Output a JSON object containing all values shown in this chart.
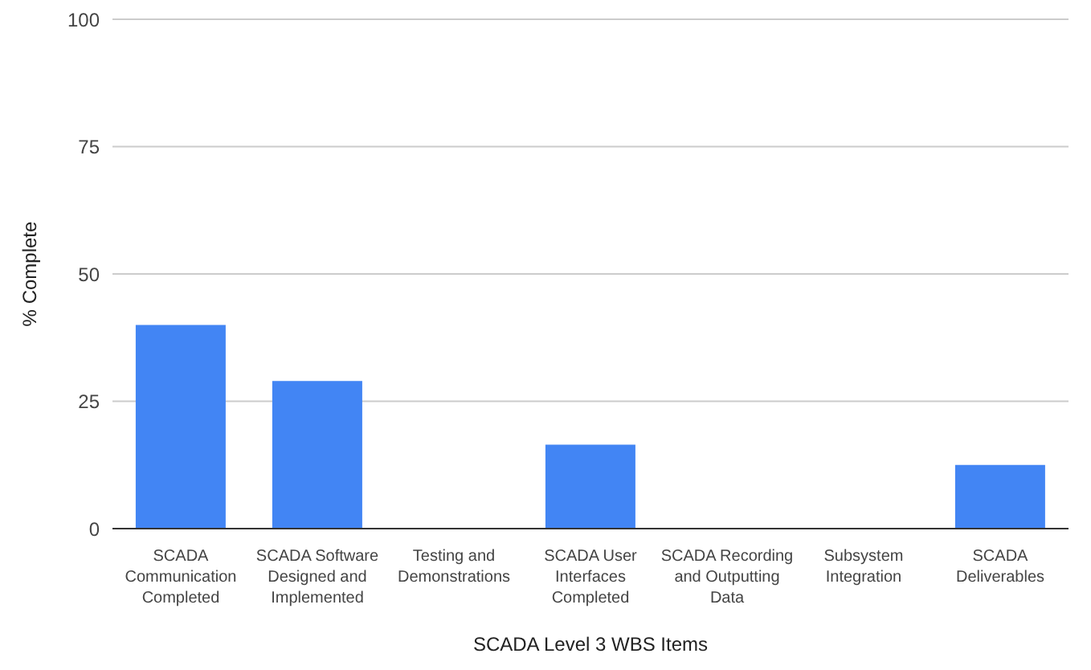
{
  "chart_data": {
    "type": "bar",
    "categories": [
      "SCADA Communication Completed",
      "SCADA Software Designed and Implemented",
      "Testing and Demonstrations",
      "SCADA User Interfaces Completed",
      "SCADA Recording and Outputting Data",
      "Subsystem Integration",
      "SCADA Deliverables"
    ],
    "values": [
      40,
      29,
      0,
      16.5,
      0,
      0,
      12.5
    ],
    "color": "#4285f4",
    "xlabel": "SCADA Level 3 WBS Items",
    "ylabel": "% Complete",
    "ylim": [
      0,
      100
    ],
    "yticks": [
      0,
      25,
      50,
      75,
      100
    ],
    "grid": "y",
    "legend": false
  }
}
